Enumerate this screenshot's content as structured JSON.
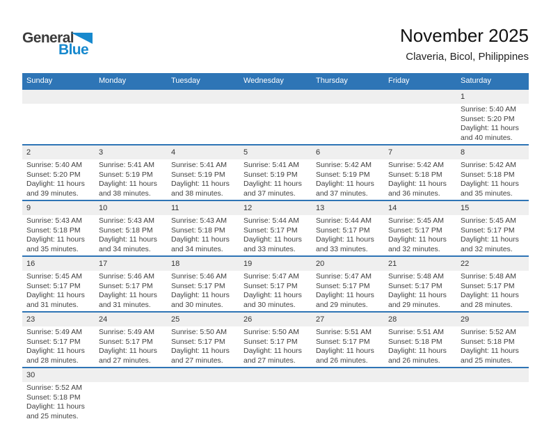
{
  "page_title": "November 2025",
  "page_subtitle": "Claveria, Bicol, Philippines",
  "logo": {
    "word1": "General",
    "word2": "Blue"
  },
  "colors": {
    "header_blue": "#2E75B6",
    "week_separator_blue": "#2E74B5",
    "day_band_gray": "#EFEFEF",
    "logo_blue": "#1789CE"
  },
  "calendar": {
    "day_headers": [
      "Sunday",
      "Monday",
      "Tuesday",
      "Wednesday",
      "Thursday",
      "Friday",
      "Saturday"
    ],
    "weeks": [
      [
        null,
        null,
        null,
        null,
        null,
        null,
        {
          "day": "1",
          "sunrise": "Sunrise: 5:40 AM",
          "sunset": "Sunset: 5:20 PM",
          "daylight1": "Daylight: 11 hours",
          "daylight2": "and 40 minutes."
        }
      ],
      [
        {
          "day": "2",
          "sunrise": "Sunrise: 5:40 AM",
          "sunset": "Sunset: 5:20 PM",
          "daylight1": "Daylight: 11 hours",
          "daylight2": "and 39 minutes."
        },
        {
          "day": "3",
          "sunrise": "Sunrise: 5:41 AM",
          "sunset": "Sunset: 5:19 PM",
          "daylight1": "Daylight: 11 hours",
          "daylight2": "and 38 minutes."
        },
        {
          "day": "4",
          "sunrise": "Sunrise: 5:41 AM",
          "sunset": "Sunset: 5:19 PM",
          "daylight1": "Daylight: 11 hours",
          "daylight2": "and 38 minutes."
        },
        {
          "day": "5",
          "sunrise": "Sunrise: 5:41 AM",
          "sunset": "Sunset: 5:19 PM",
          "daylight1": "Daylight: 11 hours",
          "daylight2": "and 37 minutes."
        },
        {
          "day": "6",
          "sunrise": "Sunrise: 5:42 AM",
          "sunset": "Sunset: 5:19 PM",
          "daylight1": "Daylight: 11 hours",
          "daylight2": "and 37 minutes."
        },
        {
          "day": "7",
          "sunrise": "Sunrise: 5:42 AM",
          "sunset": "Sunset: 5:18 PM",
          "daylight1": "Daylight: 11 hours",
          "daylight2": "and 36 minutes."
        },
        {
          "day": "8",
          "sunrise": "Sunrise: 5:42 AM",
          "sunset": "Sunset: 5:18 PM",
          "daylight1": "Daylight: 11 hours",
          "daylight2": "and 35 minutes."
        }
      ],
      [
        {
          "day": "9",
          "sunrise": "Sunrise: 5:43 AM",
          "sunset": "Sunset: 5:18 PM",
          "daylight1": "Daylight: 11 hours",
          "daylight2": "and 35 minutes."
        },
        {
          "day": "10",
          "sunrise": "Sunrise: 5:43 AM",
          "sunset": "Sunset: 5:18 PM",
          "daylight1": "Daylight: 11 hours",
          "daylight2": "and 34 minutes."
        },
        {
          "day": "11",
          "sunrise": "Sunrise: 5:43 AM",
          "sunset": "Sunset: 5:18 PM",
          "daylight1": "Daylight: 11 hours",
          "daylight2": "and 34 minutes."
        },
        {
          "day": "12",
          "sunrise": "Sunrise: 5:44 AM",
          "sunset": "Sunset: 5:17 PM",
          "daylight1": "Daylight: 11 hours",
          "daylight2": "and 33 minutes."
        },
        {
          "day": "13",
          "sunrise": "Sunrise: 5:44 AM",
          "sunset": "Sunset: 5:17 PM",
          "daylight1": "Daylight: 11 hours",
          "daylight2": "and 33 minutes."
        },
        {
          "day": "14",
          "sunrise": "Sunrise: 5:45 AM",
          "sunset": "Sunset: 5:17 PM",
          "daylight1": "Daylight: 11 hours",
          "daylight2": "and 32 minutes."
        },
        {
          "day": "15",
          "sunrise": "Sunrise: 5:45 AM",
          "sunset": "Sunset: 5:17 PM",
          "daylight1": "Daylight: 11 hours",
          "daylight2": "and 32 minutes."
        }
      ],
      [
        {
          "day": "16",
          "sunrise": "Sunrise: 5:45 AM",
          "sunset": "Sunset: 5:17 PM",
          "daylight1": "Daylight: 11 hours",
          "daylight2": "and 31 minutes."
        },
        {
          "day": "17",
          "sunrise": "Sunrise: 5:46 AM",
          "sunset": "Sunset: 5:17 PM",
          "daylight1": "Daylight: 11 hours",
          "daylight2": "and 31 minutes."
        },
        {
          "day": "18",
          "sunrise": "Sunrise: 5:46 AM",
          "sunset": "Sunset: 5:17 PM",
          "daylight1": "Daylight: 11 hours",
          "daylight2": "and 30 minutes."
        },
        {
          "day": "19",
          "sunrise": "Sunrise: 5:47 AM",
          "sunset": "Sunset: 5:17 PM",
          "daylight1": "Daylight: 11 hours",
          "daylight2": "and 30 minutes."
        },
        {
          "day": "20",
          "sunrise": "Sunrise: 5:47 AM",
          "sunset": "Sunset: 5:17 PM",
          "daylight1": "Daylight: 11 hours",
          "daylight2": "and 29 minutes."
        },
        {
          "day": "21",
          "sunrise": "Sunrise: 5:48 AM",
          "sunset": "Sunset: 5:17 PM",
          "daylight1": "Daylight: 11 hours",
          "daylight2": "and 29 minutes."
        },
        {
          "day": "22",
          "sunrise": "Sunrise: 5:48 AM",
          "sunset": "Sunset: 5:17 PM",
          "daylight1": "Daylight: 11 hours",
          "daylight2": "and 28 minutes."
        }
      ],
      [
        {
          "day": "23",
          "sunrise": "Sunrise: 5:49 AM",
          "sunset": "Sunset: 5:17 PM",
          "daylight1": "Daylight: 11 hours",
          "daylight2": "and 28 minutes."
        },
        {
          "day": "24",
          "sunrise": "Sunrise: 5:49 AM",
          "sunset": "Sunset: 5:17 PM",
          "daylight1": "Daylight: 11 hours",
          "daylight2": "and 27 minutes."
        },
        {
          "day": "25",
          "sunrise": "Sunrise: 5:50 AM",
          "sunset": "Sunset: 5:17 PM",
          "daylight1": "Daylight: 11 hours",
          "daylight2": "and 27 minutes."
        },
        {
          "day": "26",
          "sunrise": "Sunrise: 5:50 AM",
          "sunset": "Sunset: 5:17 PM",
          "daylight1": "Daylight: 11 hours",
          "daylight2": "and 27 minutes."
        },
        {
          "day": "27",
          "sunrise": "Sunrise: 5:51 AM",
          "sunset": "Sunset: 5:17 PM",
          "daylight1": "Daylight: 11 hours",
          "daylight2": "and 26 minutes."
        },
        {
          "day": "28",
          "sunrise": "Sunrise: 5:51 AM",
          "sunset": "Sunset: 5:18 PM",
          "daylight1": "Daylight: 11 hours",
          "daylight2": "and 26 minutes."
        },
        {
          "day": "29",
          "sunrise": "Sunrise: 5:52 AM",
          "sunset": "Sunset: 5:18 PM",
          "daylight1": "Daylight: 11 hours",
          "daylight2": "and 25 minutes."
        }
      ],
      [
        {
          "day": "30",
          "sunrise": "Sunrise: 5:52 AM",
          "sunset": "Sunset: 5:18 PM",
          "daylight1": "Daylight: 11 hours",
          "daylight2": "and 25 minutes."
        },
        null,
        null,
        null,
        null,
        null,
        null
      ]
    ]
  }
}
